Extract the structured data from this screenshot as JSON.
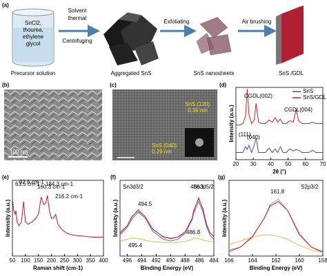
{
  "scheme": {
    "label": "(a)",
    "beaker_text": [
      "SnCl2,",
      "thourea,",
      "ethylene",
      "glycol"
    ],
    "step1_top": [
      "Solvent",
      "thermal"
    ],
    "step1_bottom": "Centrifuging",
    "step2": "Exfoliating",
    "step3": "Air brushing",
    "captions": [
      "Precursor solution",
      "Aggregated SnS",
      "SnS nanosheets",
      "SnS /GDL"
    ]
  },
  "images": {
    "sem": {
      "label": "(b)",
      "scale": "100 nm"
    },
    "tem": {
      "label": "(c)",
      "plane1": "SnS (120)",
      "spacing1": "0.35 nm",
      "plane2": "SnS (040)",
      "spacing2": "0.29 nm"
    }
  },
  "chart_data": [
    {
      "type": "line",
      "label": "(d)",
      "x_label": "2θ (°)",
      "y_label": "Intensity (a.u.)",
      "xlim": [
        20,
        70
      ],
      "ylim": [
        0,
        1
      ],
      "xticks": [
        20,
        30,
        40,
        50,
        60,
        70
      ],
      "x": [
        20,
        22,
        24,
        25.5,
        26.5,
        27.5,
        29,
        30.5,
        31.6,
        33,
        35,
        37,
        39,
        41,
        42.5,
        44,
        45.5,
        47,
        49,
        51,
        53,
        54.6,
        56,
        58,
        60,
        62,
        64,
        66,
        68,
        70
      ],
      "series": [
        {
          "name": "SnS",
          "color": "#3a4fc4",
          "values": [
            0.1,
            0.1,
            0.1,
            0.18,
            0.14,
            0.2,
            0.1,
            0.2,
            0.3,
            0.1,
            0.1,
            0.1,
            0.16,
            0.1,
            0.15,
            0.1,
            0.18,
            0.1,
            0.1,
            0.15,
            0.12,
            0.14,
            0.13,
            0.1,
            0.1,
            0.1,
            0.13,
            0.1,
            0.1,
            0.1
          ]
        },
        {
          "name": "SnS/GDL",
          "color": "#d42020",
          "values": [
            0.48,
            0.48,
            0.5,
            0.6,
            0.98,
            0.62,
            0.5,
            0.55,
            0.78,
            0.52,
            0.5,
            0.5,
            0.55,
            0.52,
            0.58,
            0.52,
            0.56,
            0.5,
            0.5,
            0.54,
            0.52,
            0.7,
            0.54,
            0.5,
            0.5,
            0.5,
            0.52,
            0.5,
            0.5,
            0.5
          ]
        }
      ],
      "legend": "upper right",
      "annotations": [
        "CGDL(002)",
        "(111)",
        "(040)",
        "CGDL(004)"
      ]
    },
    {
      "type": "line",
      "label": "(e)",
      "x_label": "Raman shift (cm-1)",
      "y_label": "Intensity (a.u.)",
      "xlim": [
        50,
        400
      ],
      "ylim": [
        0,
        1
      ],
      "xticks": [
        50,
        100,
        150,
        200,
        250,
        300,
        350,
        400
      ],
      "x": [
        50,
        55,
        60,
        63.5,
        68,
        75,
        85,
        92.6,
        100,
        110,
        125,
        140,
        150,
        160.3,
        170,
        178,
        184.3,
        192,
        200,
        208,
        216.2,
        225,
        240,
        260,
        280,
        300,
        330,
        360,
        400
      ],
      "series": [
        {
          "color": "#c81818",
          "values": [
            0.75,
            0.6,
            0.55,
            0.6,
            0.45,
            0.4,
            0.45,
            0.72,
            0.45,
            0.42,
            0.45,
            0.5,
            0.55,
            0.78,
            0.68,
            0.7,
            0.8,
            0.6,
            0.5,
            0.5,
            0.55,
            0.42,
            0.35,
            0.3,
            0.28,
            0.27,
            0.26,
            0.25,
            0.25
          ]
        }
      ],
      "annotations": [
        "63.5 cm-1",
        "92.6 cm-1",
        "160.3 cm-1",
        "184.3 cm-1",
        "216.2 cm-1"
      ]
    },
    {
      "type": "line",
      "label": "(f)",
      "x_label": "Binding Energy (eV)",
      "y_label": "Intensity (a.u.)",
      "xlim": [
        497,
        484
      ],
      "ylim": [
        0,
        1
      ],
      "xticks": [
        496,
        494,
        492,
        490,
        488,
        486,
        484
      ],
      "x": [
        497,
        496,
        495.4,
        494.5,
        493.5,
        492.5,
        491,
        490,
        489,
        488,
        487,
        486.8,
        486.1,
        485.5,
        485,
        484.5,
        484
      ],
      "series": [
        {
          "color": "#a0a0a0",
          "values": [
            0.32,
            0.4,
            0.5,
            0.62,
            0.52,
            0.35,
            0.26,
            0.24,
            0.25,
            0.3,
            0.48,
            0.58,
            0.78,
            0.6,
            0.4,
            0.3,
            0.26
          ]
        },
        {
          "color": "#5a6ad0",
          "values": [
            0.28,
            0.38,
            0.48,
            0.58,
            0.5,
            0.33,
            0.22,
            0.2,
            0.22,
            0.3,
            0.48,
            0.56,
            0.72,
            0.58,
            0.38,
            0.27,
            0.22
          ]
        },
        {
          "color": "#e8b84a",
          "values": [
            0.2,
            0.22,
            0.24,
            0.23,
            0.21,
            0.19,
            0.18,
            0.18,
            0.18,
            0.19,
            0.22,
            0.24,
            0.23,
            0.21,
            0.2,
            0.19,
            0.19
          ]
        },
        {
          "color": "#d42020",
          "values": [
            0.3,
            0.4,
            0.52,
            0.6,
            0.52,
            0.36,
            0.25,
            0.23,
            0.25,
            0.32,
            0.5,
            0.6,
            0.76,
            0.62,
            0.42,
            0.3,
            0.26
          ]
        }
      ],
      "annotations": [
        "Sn3d3/2",
        "494.5",
        "495.4",
        "486.1",
        "Sn3d5/2",
        "486.8"
      ]
    },
    {
      "type": "line",
      "label": "(g)",
      "x_label": "Binding Energy (eV)",
      "y_label": "Intensity (a.u.)",
      "xlim": [
        166,
        158
      ],
      "ylim": [
        0,
        1
      ],
      "xticks": [
        166,
        164,
        162,
        160,
        158
      ],
      "x": [
        166,
        165,
        164,
        163,
        162.5,
        161.8,
        161,
        160.5,
        160,
        159,
        158
      ],
      "series": [
        {
          "color": "#a0a0a0",
          "values": [
            0.08,
            0.12,
            0.25,
            0.5,
            0.68,
            0.75,
            0.6,
            0.45,
            0.3,
            0.12,
            0.06
          ]
        },
        {
          "color": "#e8b84a",
          "values": [
            0.15,
            0.2,
            0.25,
            0.28,
            0.28,
            0.26,
            0.22,
            0.18,
            0.14,
            0.08,
            0.05
          ]
        },
        {
          "color": "#d42020",
          "values": [
            0.06,
            0.12,
            0.26,
            0.5,
            0.66,
            0.72,
            0.6,
            0.44,
            0.28,
            0.12,
            0.05
          ]
        }
      ],
      "annotations": [
        "S2p3/2",
        "161.8"
      ]
    }
  ]
}
